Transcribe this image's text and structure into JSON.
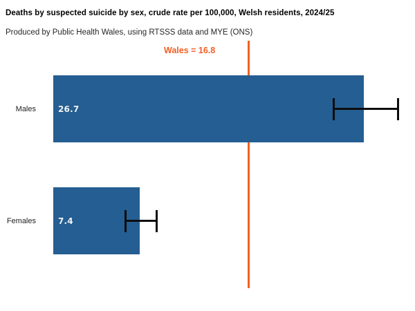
{
  "chart_data": {
    "type": "bar",
    "orientation": "horizontal",
    "title": "Deaths by suspected suicide by sex, crude rate per 100,000, Welsh residents, 2024/25",
    "subtitle": "Produced by Public Health Wales, using RTSSS data and MYE (ONS)",
    "categories": [
      "Males",
      "Females"
    ],
    "values": [
      26.7,
      7.4
    ],
    "value_labels": [
      "26.7",
      "7.4"
    ],
    "error_bars": [
      {
        "low": 24.0,
        "high": 29.7
      },
      {
        "low": 6.1,
        "high": 9.0
      }
    ],
    "reference_line": {
      "label": "Wales = 16.8",
      "value": 16.8
    },
    "xlim": [
      0,
      31.1
    ],
    "grid": false,
    "axes_visible": false,
    "legend": "none",
    "colors": {
      "bar": "#245e92",
      "reference": "#f35e22",
      "error_bar": "#0d0d0d",
      "value_label": "#f2f2f2",
      "title": "#000000",
      "subtitle": "#262626"
    }
  }
}
